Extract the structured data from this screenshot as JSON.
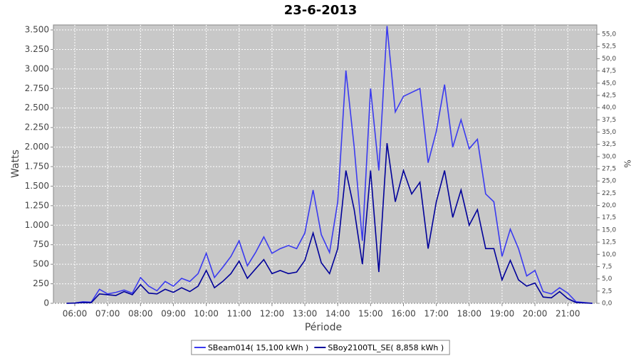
{
  "chart_data": {
    "type": "line",
    "title": "23-6-2013",
    "x_label": "Période",
    "y_label": "Watts",
    "y2_label": "%",
    "x": [
      "05:45",
      "06:00",
      "06:15",
      "06:30",
      "06:45",
      "07:00",
      "07:15",
      "07:30",
      "07:45",
      "08:00",
      "08:15",
      "08:30",
      "08:45",
      "09:00",
      "09:15",
      "09:30",
      "09:45",
      "10:00",
      "10:15",
      "10:30",
      "10:45",
      "11:00",
      "11:15",
      "11:30",
      "11:45",
      "12:00",
      "12:15",
      "12:30",
      "12:45",
      "13:00",
      "13:15",
      "13:30",
      "13:45",
      "14:00",
      "14:15",
      "14:30",
      "14:45",
      "15:00",
      "15:15",
      "15:30",
      "15:45",
      "16:00",
      "16:15",
      "16:30",
      "16:45",
      "17:00",
      "17:15",
      "17:30",
      "17:45",
      "18:00",
      "18:15",
      "18:30",
      "18:45",
      "19:00",
      "19:15",
      "19:30",
      "19:45",
      "20:00",
      "20:15",
      "20:30",
      "20:45",
      "21:00",
      "21:15",
      "21:30",
      "21:45"
    ],
    "series": [
      {
        "name": "SBeam014( 15,100 kWh )",
        "color": "#3a3af0",
        "values": [
          0,
          5,
          20,
          15,
          180,
          120,
          140,
          170,
          130,
          330,
          220,
          160,
          280,
          220,
          320,
          280,
          380,
          640,
          330,
          460,
          600,
          800,
          480,
          650,
          850,
          640,
          700,
          740,
          700,
          900,
          1450,
          880,
          650,
          1300,
          2980,
          2000,
          800,
          2750,
          1700,
          3550,
          2450,
          2650,
          2700,
          2750,
          1800,
          2200,
          2800,
          2000,
          2350,
          1980,
          2100,
          1400,
          1300,
          600,
          950,
          700,
          350,
          420,
          150,
          120,
          200,
          130,
          20,
          10,
          0
        ]
      },
      {
        "name": "SBoy2100TL_SE( 8,858 kWh )",
        "color": "#00009a",
        "values": [
          0,
          3,
          10,
          8,
          120,
          110,
          100,
          150,
          110,
          240,
          130,
          120,
          180,
          140,
          200,
          150,
          220,
          420,
          200,
          280,
          380,
          540,
          320,
          440,
          560,
          380,
          420,
          380,
          400,
          550,
          900,
          520,
          380,
          700,
          1700,
          1200,
          500,
          1700,
          400,
          2050,
          1300,
          1700,
          1400,
          1550,
          700,
          1300,
          1700,
          1100,
          1450,
          1000,
          1200,
          700,
          700,
          300,
          550,
          300,
          220,
          260,
          80,
          70,
          150,
          60,
          10,
          5,
          0
        ]
      }
    ],
    "xlim": [
      "05:21",
      "21:53"
    ],
    "xticks": [
      "06:00",
      "07:00",
      "08:00",
      "09:00",
      "10:00",
      "11:00",
      "12:00",
      "13:00",
      "14:00",
      "15:00",
      "16:00",
      "17:00",
      "18:00",
      "19:00",
      "20:00",
      "21:00"
    ],
    "ylim": [
      0,
      3564
    ],
    "yticks": [
      0,
      250,
      500,
      750,
      {
        "value": 1000,
        "label": "1.000"
      },
      {
        "value": 1250,
        "label": "1.250"
      },
      {
        "value": 1500,
        "label": "1.500"
      },
      {
        "value": 1750,
        "label": "1.750"
      },
      {
        "value": 2000,
        "label": "2.000"
      },
      {
        "value": 2250,
        "label": "2.250"
      },
      {
        "value": 2500,
        "label": "2.500"
      },
      {
        "value": 2750,
        "label": "2.750"
      },
      {
        "value": 3000,
        "label": "3.000"
      },
      {
        "value": 3250,
        "label": "3.250"
      },
      {
        "value": 3500,
        "label": "3.500"
      }
    ],
    "y2lim": [
      0,
      56.9
    ],
    "y2ticks": [
      {
        "value": 0,
        "label": "0,0"
      },
      {
        "value": 2.5,
        "label": "2,5"
      },
      {
        "value": 5,
        "label": "5,0"
      },
      {
        "value": 7.5,
        "label": "7,5"
      },
      {
        "value": 10,
        "label": "10,0"
      },
      {
        "value": 12.5,
        "label": "12,5"
      },
      {
        "value": 15,
        "label": "15,0"
      },
      {
        "value": 17.5,
        "label": "17,5"
      },
      {
        "value": 20,
        "label": "20,0"
      },
      {
        "value": 22.5,
        "label": "22,5"
      },
      {
        "value": 25,
        "label": "25,0"
      },
      {
        "value": 27.5,
        "label": "27,5"
      },
      {
        "value": 30,
        "label": "30,0"
      },
      {
        "value": 32.5,
        "label": "32,5"
      },
      {
        "value": 35,
        "label": "35,0"
      },
      {
        "value": 37.5,
        "label": "37,5"
      },
      {
        "value": 40,
        "label": "40,0"
      },
      {
        "value": 42.5,
        "label": "42,5"
      },
      {
        "value": 45,
        "label": "45,0"
      },
      {
        "value": 47.5,
        "label": "47,5"
      },
      {
        "value": 50,
        "label": "50,0"
      },
      {
        "value": 52.5,
        "label": "52,5"
      },
      {
        "value": 55,
        "label": "55,0"
      }
    ],
    "grid": true,
    "plot_background": "#c8c8c8",
    "legend": "bottom"
  }
}
